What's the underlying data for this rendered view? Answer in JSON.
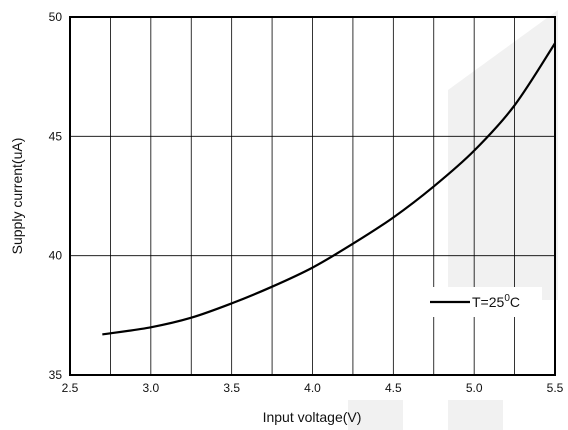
{
  "chart_data": {
    "type": "line",
    "title": "",
    "xlabel": "Input voltage(V)",
    "ylabel": "Supply current(uA)",
    "xlim": [
      2.5,
      5.5
    ],
    "ylim": [
      35,
      50
    ],
    "x_ticks": [
      "2.5",
      "3.0",
      "3.5",
      "4.0",
      "4.5",
      "5.0",
      "5.5"
    ],
    "y_ticks": [
      "35",
      "40",
      "45",
      "50"
    ],
    "grid": true,
    "legend_position": "lower-right",
    "series": [
      {
        "name": "T=25°C",
        "legend_main": "T=25",
        "legend_sup": "0",
        "legend_suffix": "C",
        "color": "#000000",
        "x": [
          2.7,
          3.0,
          3.25,
          3.5,
          3.75,
          4.0,
          4.25,
          4.5,
          4.75,
          5.0,
          5.25,
          5.5
        ],
        "y": [
          36.7,
          37.0,
          37.4,
          38.0,
          38.7,
          39.5,
          40.5,
          41.6,
          42.9,
          44.4,
          46.3,
          48.9
        ]
      }
    ]
  }
}
